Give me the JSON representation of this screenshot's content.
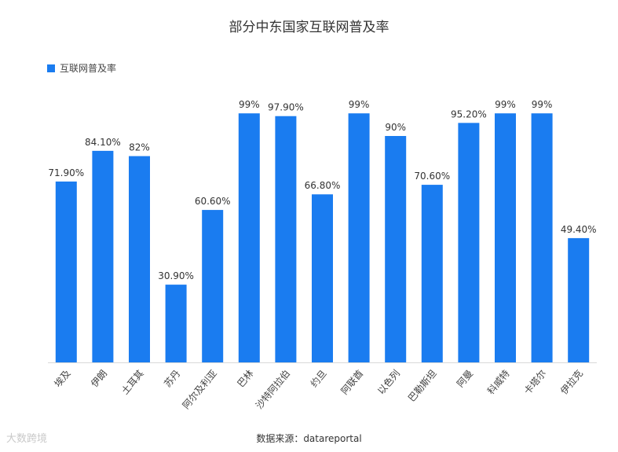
{
  "chart_data": {
    "type": "bar",
    "title": "部分中东国家互联网普及率",
    "categories": [
      "埃及",
      "伊朗",
      "土耳其",
      "苏丹",
      "阿尔及利亚",
      "巴林",
      "沙特阿拉伯",
      "约旦",
      "阿联酋",
      "以色列",
      "巴勒斯坦",
      "阿曼",
      "科威特",
      "卡塔尔",
      "伊拉克"
    ],
    "series": [
      {
        "name": "互联网普及率",
        "values": [
          71.9,
          84.1,
          82,
          30.9,
          60.6,
          99,
          97.9,
          66.8,
          99,
          90,
          70.6,
          95.2,
          99,
          99,
          49.4
        ],
        "labels": [
          "71.90%",
          "84.10%",
          "82%",
          "30.90%",
          "60.60%",
          "99%",
          "97.90%",
          "66.80%",
          "99%",
          "90%",
          "70.60%",
          "95.20%",
          "99%",
          "99%",
          "49.40%"
        ],
        "color": "#1a7cf0"
      }
    ],
    "ylim": [
      0,
      100
    ],
    "grid": false,
    "legend_position": "top-left",
    "source_text": "数据来源：datareportal"
  },
  "watermark": "大数跨境"
}
